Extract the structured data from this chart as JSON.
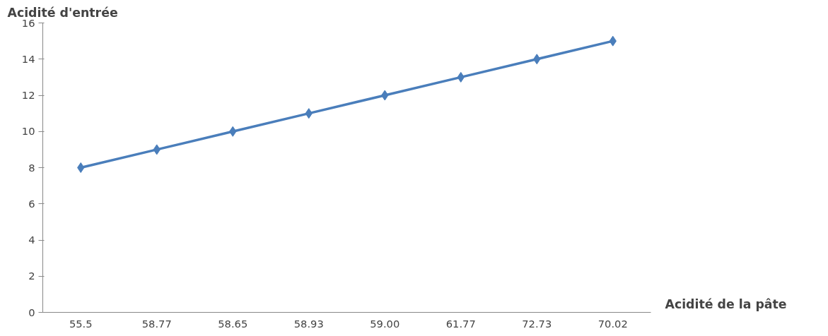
{
  "chart_data": {
    "type": "line",
    "xlabel": "Acidité de la pâte",
    "ylabel": "Acidité d'entrée",
    "categories": [
      "55.5",
      "58.77",
      "58.65",
      "58.93",
      "59.00",
      "61.77",
      "72.73",
      "70.02"
    ],
    "series": [
      {
        "color": "#4a7ebb",
        "values": [
          8,
          9,
          10,
          11,
          12,
          13,
          14,
          15
        ]
      }
    ],
    "ylim": [
      0,
      16
    ],
    "yticks": [
      0,
      2,
      4,
      6,
      8,
      10,
      12,
      14,
      16
    ],
    "grid": false,
    "marker": "diamond",
    "line_style": "solid"
  }
}
